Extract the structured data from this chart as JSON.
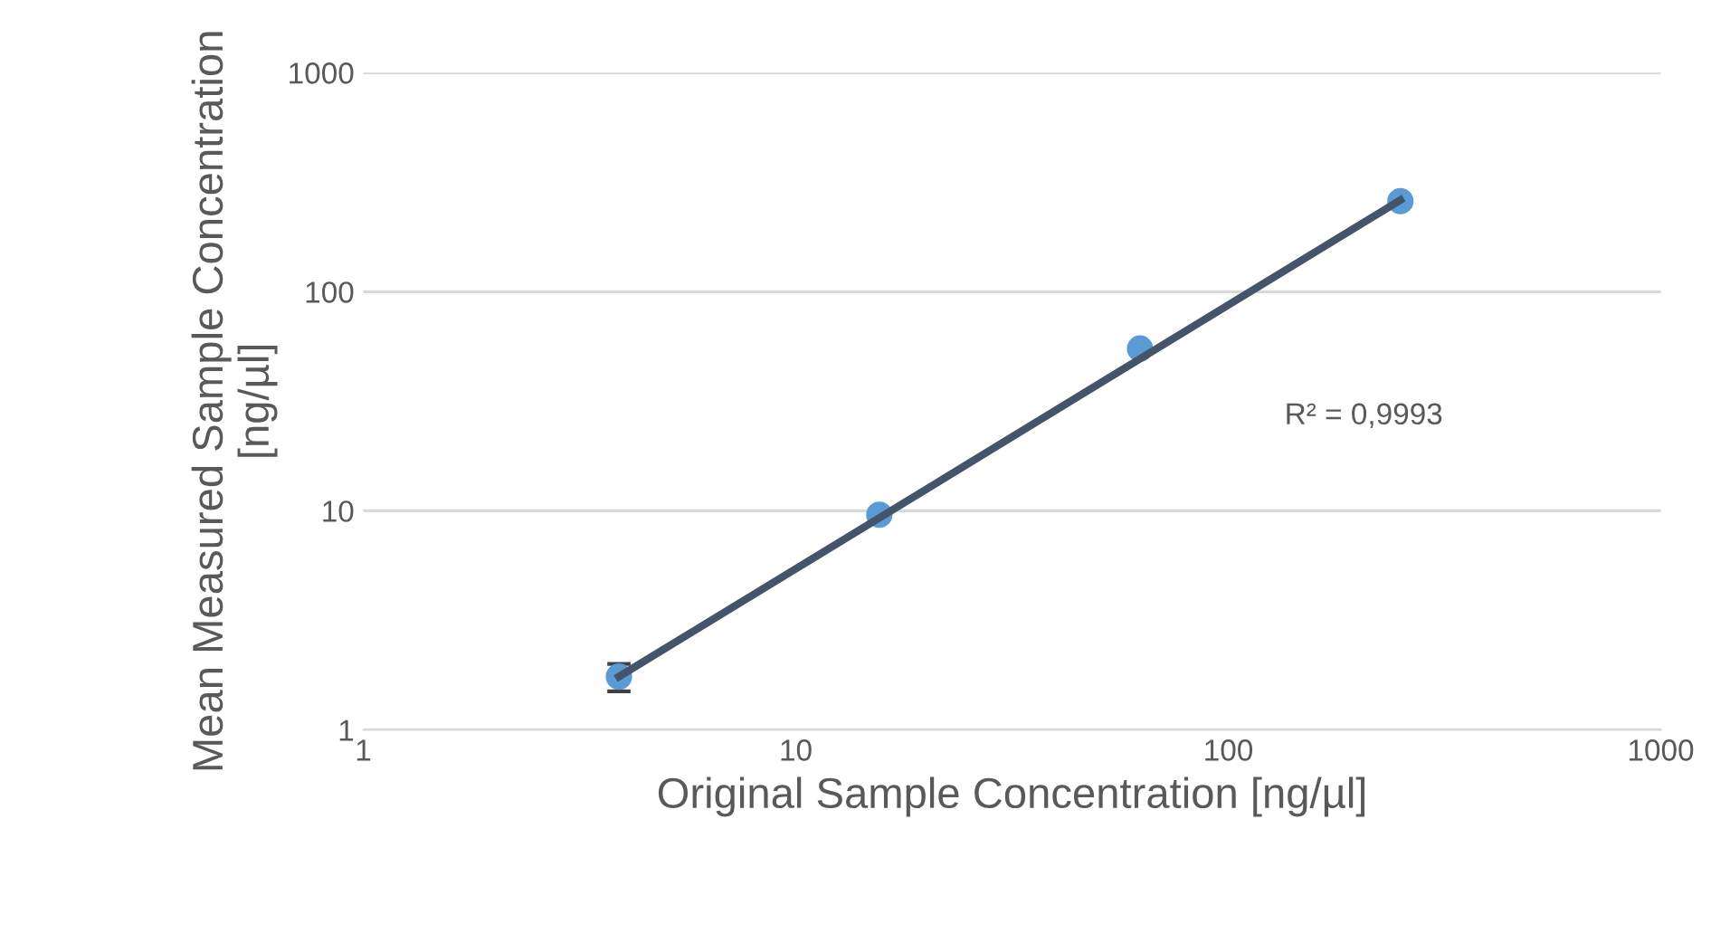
{
  "chart_data": {
    "type": "scatter",
    "xlabel": "Original Sample Concentration [ng/µl]",
    "ylabel": "Mean Measured Sample Concentration [ng/µl]",
    "x": [
      3.9,
      15.6,
      62.5,
      250
    ],
    "series": [
      {
        "color": "#5b9bd5",
        "values": [
          1.75,
          9.6,
          55,
          259
        ],
        "errors": [
          [
            1.5,
            2.0
          ],
          null,
          null,
          null
        ]
      },
      {
        "type": "line",
        "color": "#44546a",
        "x": [
          3.9,
          250
        ],
        "values": [
          1.75,
          262
        ],
        "marker": "none"
      }
    ],
    "log": "xy",
    "xlim": [
      1,
      1000
    ],
    "ylim": [
      1,
      1000
    ],
    "xticks": [
      1,
      10,
      100,
      1000
    ],
    "yticks": [
      1,
      10,
      100,
      1000
    ],
    "grid": "y",
    "legend": false,
    "annotations": [
      "R² = 0,9993"
    ]
  }
}
